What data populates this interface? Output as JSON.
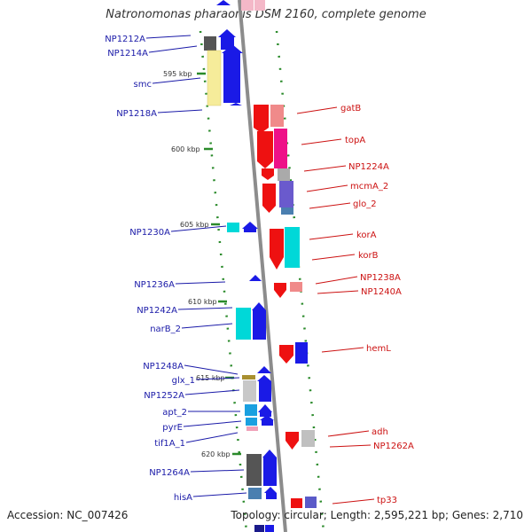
{
  "title": "Natronomonas pharaonis DSM 2160, complete genome",
  "footer": {
    "accession": "Accession: NC_007426",
    "topology": "Topology: circular; Length: 2,595,221 bp; Genes: 2,710"
  },
  "scale_labels": [
    "595 kbp",
    "600 kbp",
    "605 kbp",
    "610 kbp",
    "615 kbp",
    "620 kbp"
  ],
  "left_labels": [
    "NP1212A",
    "NP1214A",
    "smc",
    "NP1218A",
    "NP1230A",
    "NP1236A",
    "NP1242A",
    "narB_2",
    "NP1248A",
    "glx_1",
    "NP1252A",
    "apt_2",
    "pyrE",
    "tif1A_1",
    "NP1264A",
    "hisA"
  ],
  "right_labels": [
    "gatB",
    "topA",
    "NP1224A",
    "mcmA_2",
    "glo_2",
    "korA",
    "korB",
    "NP1238A",
    "NP1240A",
    "hemL",
    "adh",
    "NP1262A",
    "tp33"
  ],
  "colors": {
    "backbone": "#8c8c8c",
    "left_label": "#1a1aa8",
    "right_label": "#cc1111",
    "tick_green": "#2a8a2a"
  }
}
